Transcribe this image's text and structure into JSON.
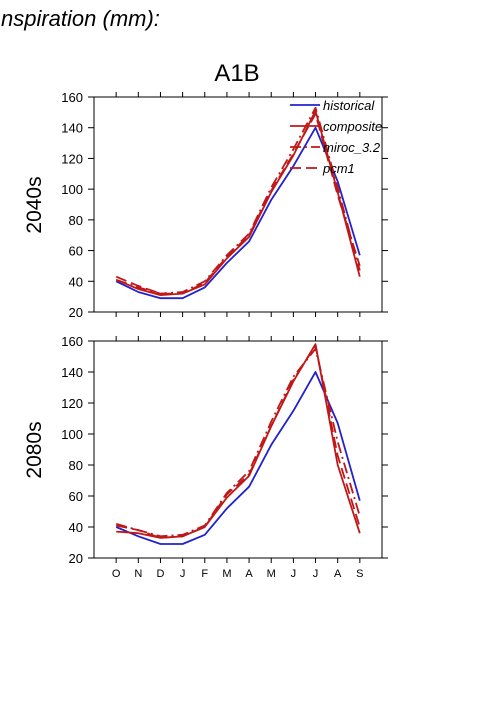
{
  "figure": {
    "header": "nspiration (mm):",
    "scenario": "A1B"
  },
  "chart_data": [
    {
      "type": "line",
      "title": "A1B",
      "ylabel": "2040s",
      "xlabel": "",
      "categories": [
        "O",
        "N",
        "D",
        "J",
        "F",
        "M",
        "A",
        "M",
        "J",
        "J",
        "A",
        "S"
      ],
      "ylim": [
        20,
        160
      ],
      "yticks": [
        20,
        40,
        60,
        80,
        100,
        120,
        140,
        160
      ],
      "grid": false,
      "legend_position": "top-right",
      "series": [
        {
          "name": "historical",
          "color": "#2222cc",
          "style": "solid",
          "values": [
            40,
            33,
            29,
            29,
            36,
            52,
            66,
            93,
            115,
            140,
            105,
            57
          ]
        },
        {
          "name": "composite",
          "color": "#c01818",
          "style": "solid",
          "values": [
            41,
            35,
            31,
            32,
            38,
            55,
            69,
            98,
            122,
            151,
            98,
            43
          ]
        },
        {
          "name": "miroc_3.2",
          "color": "#c01818",
          "style": "dashdot",
          "values": [
            41,
            36,
            32,
            33,
            40,
            57,
            71,
            101,
            126,
            153,
            101,
            47
          ]
        },
        {
          "name": "pcm1",
          "color": "#c01818",
          "style": "dashed",
          "values": [
            43,
            37,
            32,
            32,
            39,
            56,
            70,
            99,
            123,
            149,
            96,
            50
          ]
        }
      ]
    },
    {
      "type": "line",
      "title": "",
      "ylabel": "2080s",
      "xlabel": "",
      "categories": [
        "O",
        "N",
        "D",
        "J",
        "F",
        "M",
        "A",
        "M",
        "J",
        "J",
        "A",
        "S"
      ],
      "xtick_labels": [
        "O",
        "N",
        "D",
        "J",
        "F",
        "M",
        "A",
        "M",
        "J",
        "J",
        "A",
        "S"
      ],
      "ylim": [
        20,
        160
      ],
      "yticks": [
        20,
        40,
        60,
        80,
        100,
        120,
        140,
        160
      ],
      "grid": false,
      "series": [
        {
          "name": "historical",
          "color": "#2222cc",
          "style": "solid",
          "values": [
            40,
            34,
            29,
            29,
            35,
            52,
            66,
            93,
            115,
            140,
            107,
            57
          ]
        },
        {
          "name": "composite",
          "color": "#c01818",
          "style": "solid",
          "values": [
            37,
            36,
            33,
            34,
            40,
            59,
            73,
            105,
            134,
            158,
            80,
            36
          ]
        },
        {
          "name": "miroc_3.2",
          "color": "#c01818",
          "style": "dashdot",
          "values": [
            42,
            38,
            34,
            35,
            41,
            62,
            76,
            108,
            137,
            155,
            95,
            47
          ]
        },
        {
          "name": "pcm1",
          "color": "#c01818",
          "style": "dashed",
          "values": [
            41,
            38,
            33,
            34,
            40,
            61,
            74,
            105,
            135,
            157,
            86,
            40
          ]
        }
      ]
    }
  ]
}
